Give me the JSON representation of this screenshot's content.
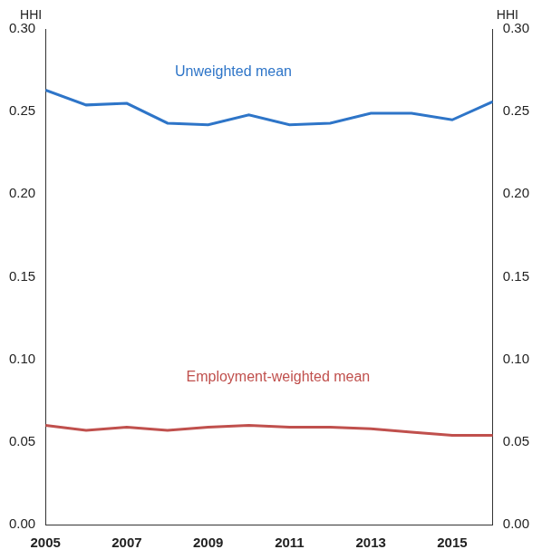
{
  "chart_data": {
    "type": "line",
    "y_label": "HHI",
    "y2_label": "HHI",
    "x": [
      2005,
      2006,
      2007,
      2008,
      2009,
      2010,
      2011,
      2012,
      2013,
      2014,
      2015,
      2016
    ],
    "xlim": [
      2005,
      2016
    ],
    "xticks": [
      2005,
      2007,
      2009,
      2011,
      2013,
      2015
    ],
    "ylim": [
      0,
      0.3
    ],
    "yticks": [
      {
        "value": 0,
        "label": "0.00"
      },
      {
        "value": 0.05,
        "label": "0.05"
      },
      {
        "value": 0.1,
        "label": "0.10"
      },
      {
        "value": 0.15,
        "label": "0.15"
      },
      {
        "value": 0.2,
        "label": "0.20"
      },
      {
        "value": 0.25,
        "label": "0.25"
      },
      {
        "value": 0.3,
        "label": "0.30"
      }
    ],
    "y2lim": [
      0,
      0.3
    ],
    "y2ticks": [
      {
        "value": 0,
        "label": "0.00"
      },
      {
        "value": 0.05,
        "label": "0.05"
      },
      {
        "value": 0.1,
        "label": "0.10"
      },
      {
        "value": 0.15,
        "label": "0.15"
      },
      {
        "value": 0.2,
        "label": "0.20"
      },
      {
        "value": 0.25,
        "label": "0.25"
      },
      {
        "value": 0.3,
        "label": "0.30"
      }
    ],
    "grid": false,
    "series": [
      {
        "name": "Unweighted mean",
        "color": "#2e75c8",
        "values": [
          0.263,
          0.254,
          0.255,
          0.243,
          0.242,
          0.248,
          0.242,
          0.243,
          0.249,
          0.249,
          0.245,
          0.256
        ]
      },
      {
        "name": "Employment-weighted mean",
        "color": "#c0504d",
        "values": [
          0.06,
          0.057,
          0.059,
          0.057,
          0.059,
          0.06,
          0.059,
          0.059,
          0.058,
          0.056,
          0.054,
          0.054
        ]
      }
    ]
  }
}
